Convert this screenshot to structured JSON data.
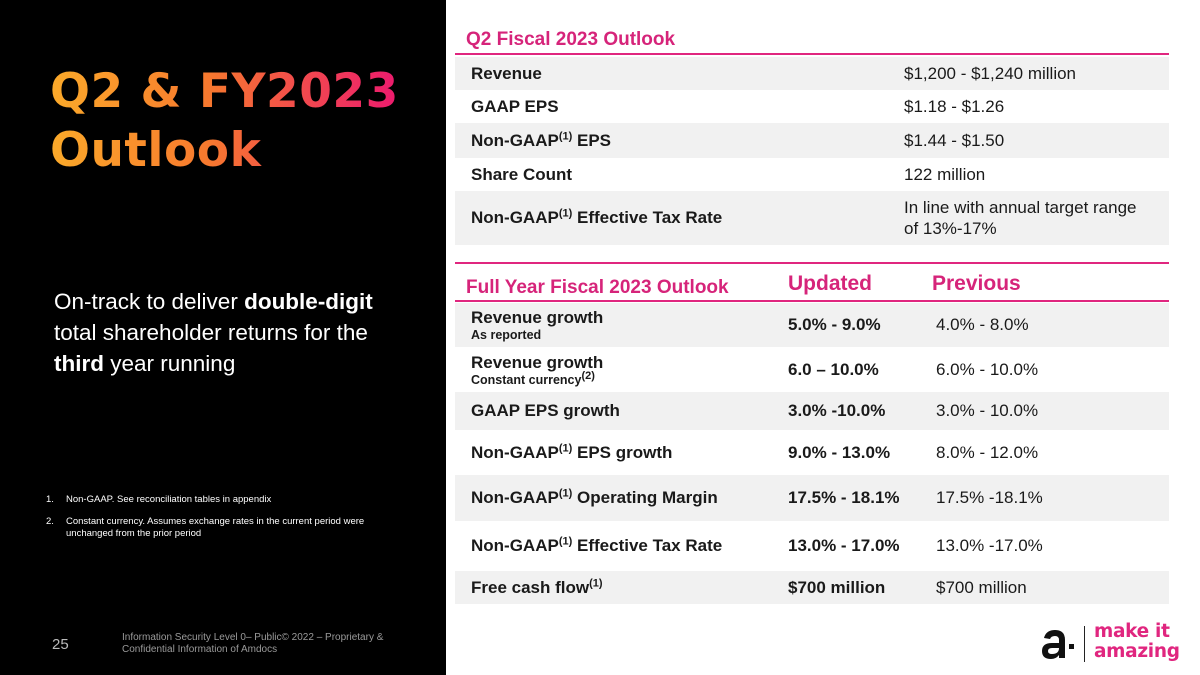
{
  "slide": {
    "title_line1": "Q2 & FY2023",
    "title_line2": "Outlook",
    "tagline": {
      "pre": "On-track to deliver ",
      "bold1": "double-digit",
      "mid": " total shareholder returns for the ",
      "bold2": "third",
      "post": " year running"
    },
    "footnotes": [
      {
        "num": "1.",
        "text": "Non-GAAP. See reconciliation tables in appendix"
      },
      {
        "num": "2.",
        "text": "Constant currency. Assumes exchange rates in the current period were unchanged from the prior period"
      }
    ],
    "page_number": "25",
    "confidentiality": "Information Security Level 0– Public© 2022 – Proprietary & Confidential Information of Amdocs"
  },
  "q2_outlook": {
    "title": "Q2 Fiscal 2023 Outlook",
    "rows": [
      {
        "label": "Revenue",
        "sup": "",
        "label_suffix": "",
        "value": "$1,200 - $1,240 million"
      },
      {
        "label": "GAAP EPS",
        "sup": "",
        "label_suffix": "",
        "value": "$1.18 - $1.26"
      },
      {
        "label": "Non-GAAP",
        "sup": "(1)",
        "label_suffix": " EPS",
        "value": "$1.44 - $1.50"
      },
      {
        "label": "Share Count",
        "sup": "",
        "label_suffix": "",
        "value": "122 million"
      },
      {
        "label": "Non-GAAP",
        "sup": "(1)",
        "label_suffix": " Effective Tax Rate",
        "value": "In line with annual target range of 13%-17%"
      }
    ]
  },
  "fy_outlook": {
    "title": "Full Year Fiscal 2023 Outlook",
    "col_updated": "Updated",
    "col_previous": "Previous",
    "rows": [
      {
        "label": "Revenue growth",
        "sup": "",
        "label_suffix": "",
        "sublabel": "As reported",
        "sub_sup": "",
        "updated": "5.0% - 9.0%",
        "previous": "4.0% - 8.0%"
      },
      {
        "label": "Revenue growth",
        "sup": "",
        "label_suffix": "",
        "sublabel": "Constant currency",
        "sub_sup": "(2)",
        "updated": "6.0 – 10.0%",
        "previous": "6.0% - 10.0%"
      },
      {
        "label": "GAAP EPS growth",
        "sup": "",
        "label_suffix": "",
        "sublabel": "",
        "sub_sup": "",
        "updated": "3.0% -10.0%",
        "previous": "3.0% - 10.0%"
      },
      {
        "label": "Non-GAAP",
        "sup": "(1)",
        "label_suffix": " EPS growth",
        "sublabel": "",
        "sub_sup": "",
        "updated": "9.0% - 13.0%",
        "previous": "8.0% - 12.0%"
      },
      {
        "label": "Non-GAAP",
        "sup": "(1)",
        "label_suffix": " Operating Margin",
        "sublabel": "",
        "sub_sup": "",
        "updated": "17.5% - 18.1%",
        "previous": "17.5% -18.1%"
      },
      {
        "label": "Non-GAAP",
        "sup": "(1)",
        "label_suffix": " Effective Tax Rate",
        "sublabel": "",
        "sub_sup": "",
        "updated": "13.0% - 17.0%",
        "previous": "13.0% -17.0%"
      },
      {
        "label": "Free cash flow",
        "sup": "(1)",
        "label_suffix": "",
        "sublabel": "",
        "sub_sup": "",
        "updated": "$700 million",
        "previous": "$700 million"
      }
    ]
  },
  "brand": {
    "logo_line1": "make it",
    "logo_line2": "amazing",
    "accent": "#e0267f"
  }
}
